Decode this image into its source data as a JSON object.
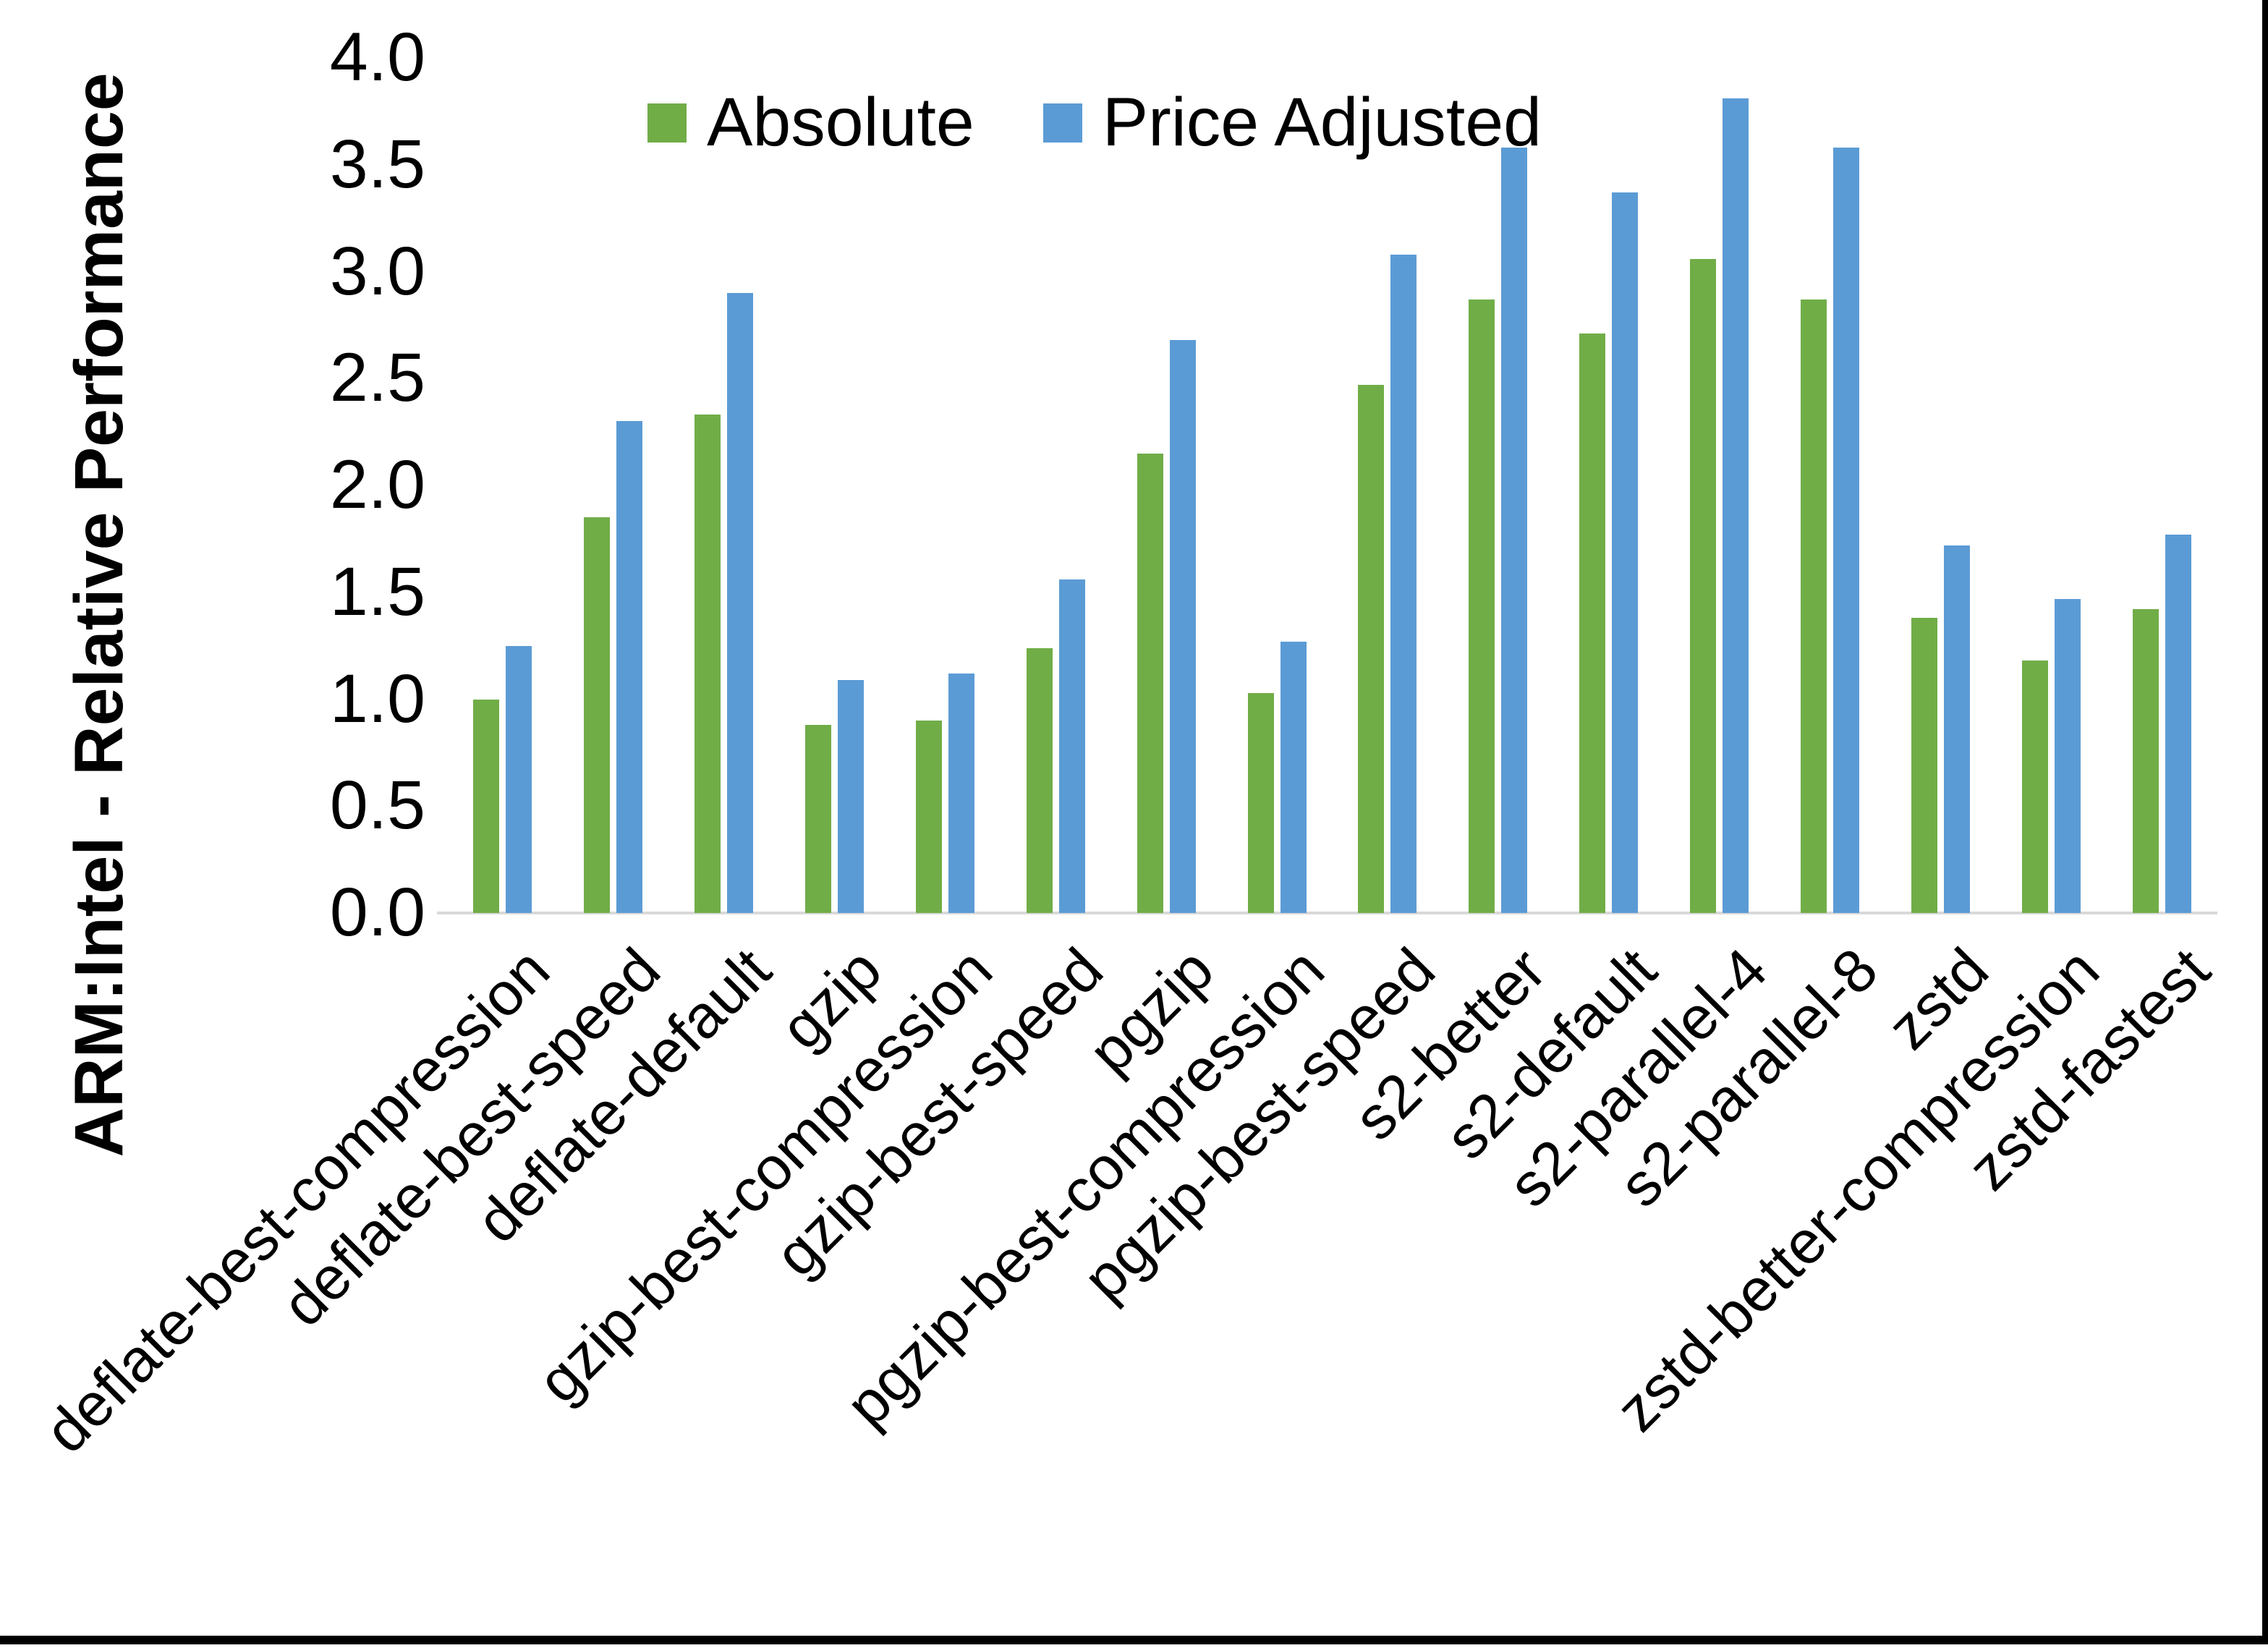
{
  "chart_data": {
    "type": "bar",
    "title": "",
    "xlabel": "",
    "ylabel": "ARM:Intel - Relative Performance",
    "ylim": [
      0.0,
      4.0
    ],
    "ytick_labels": [
      "0.0",
      "0.5",
      "1.0",
      "1.5",
      "2.0",
      "2.5",
      "3.0",
      "3.5",
      "4.0"
    ],
    "grid": false,
    "legend_position": "top-center",
    "categories": [
      "deflate-best-compression",
      "deflate-best-speed",
      "deflate-default",
      "gzip",
      "gzip-best-compression",
      "gzip-best-speed",
      "pgzip",
      "pgzip-best-compression",
      "pgzip-best-speed",
      "s2-better",
      "s2-default",
      "s2-parallel-4",
      "s2-parallel-8",
      "zstd",
      "zstd-better-compression",
      "zstd-fastest"
    ],
    "series": [
      {
        "name": "Absolute",
        "color": "#70AD47",
        "values": [
          1.0,
          1.85,
          2.33,
          0.88,
          0.9,
          1.24,
          2.15,
          1.03,
          2.47,
          2.87,
          2.71,
          3.06,
          2.87,
          1.38,
          1.18,
          1.42
        ]
      },
      {
        "name": "Price Adjusted",
        "color": "#5B9BD5",
        "values": [
          1.25,
          2.3,
          2.9,
          1.09,
          1.12,
          1.56,
          2.68,
          1.27,
          3.08,
          3.58,
          3.37,
          3.81,
          3.58,
          1.72,
          1.47,
          1.77
        ]
      }
    ],
    "colors": {
      "axis_line": "#D9D9D9",
      "text": "#000000",
      "frame_edge": "#000000"
    }
  }
}
